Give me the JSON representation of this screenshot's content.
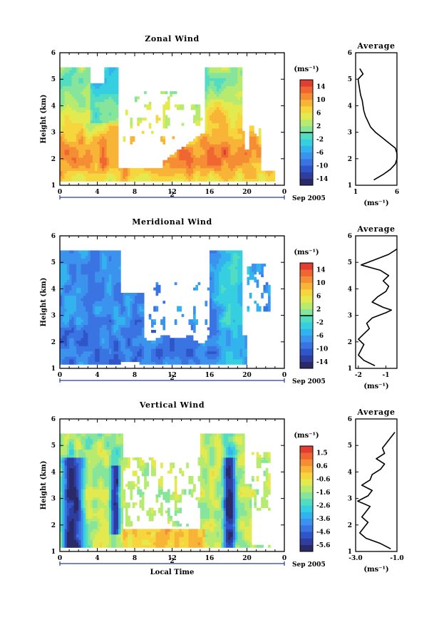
{
  "palette": [
    "#2b2a68",
    "#2f3d9e",
    "#2f56c9",
    "#3a74e2",
    "#3c93ee",
    "#33b3ee",
    "#35cfe0",
    "#52dcc2",
    "#86e59a",
    "#b7eb70",
    "#e3ea4f",
    "#f6d63c",
    "#f7b437",
    "#f58d34",
    "#ef6632",
    "#e03e30"
  ],
  "chart_data": [
    {
      "type": "heatmap",
      "title": "Zonal Wind",
      "ylabel": "Height (km)",
      "xlabel": "",
      "x_ticks": [
        "0",
        "4",
        "8",
        "12",
        "16",
        "20",
        "0"
      ],
      "y_ticks": [
        "1",
        "2",
        "3",
        "4",
        "5",
        "6"
      ],
      "ylim": [
        1,
        6
      ],
      "date_bar_label": "2",
      "date_label": "Sep 2005",
      "colorbar": {
        "unit": "(ms⁻¹)",
        "ticks": [
          "14",
          "10",
          "6",
          "2",
          "-2",
          "-6",
          "-10",
          "-14"
        ],
        "range": [
          -16,
          16
        ],
        "zero_line": true
      },
      "average": {
        "title": "Average",
        "xlabel": "(ms⁻¹)",
        "x_ticks": [
          "1",
          "6"
        ],
        "xlim": [
          1,
          6
        ],
        "heights": [
          1.2,
          1.4,
          1.6,
          1.8,
          2.0,
          2.2,
          2.4,
          2.6,
          2.8,
          3.0,
          3.2,
          3.4,
          3.6,
          3.8,
          4.0,
          4.2,
          4.4,
          4.6,
          4.8,
          5.0,
          5.2,
          5.4
        ],
        "values": [
          3.2,
          4.3,
          5.2,
          5.8,
          6.0,
          6.0,
          5.8,
          5.0,
          4.2,
          3.4,
          2.8,
          2.5,
          2.2,
          2.0,
          1.9,
          1.8,
          1.6,
          1.5,
          1.4,
          1.3,
          1.9,
          1.5
        ]
      }
    },
    {
      "type": "heatmap",
      "title": "Meridional Wind",
      "ylabel": "Height (km)",
      "xlabel": "",
      "x_ticks": [
        "0",
        "4",
        "8",
        "12",
        "16",
        "20",
        "0"
      ],
      "y_ticks": [
        "1",
        "2",
        "3",
        "4",
        "5",
        "6"
      ],
      "ylim": [
        1,
        6
      ],
      "date_bar_label": "2",
      "date_label": "Sep 2005",
      "colorbar": {
        "unit": "(ms⁻¹)",
        "ticks": [
          "14",
          "10",
          "6",
          "2",
          "-2",
          "-6",
          "-10",
          "-14"
        ],
        "range": [
          -16,
          16
        ],
        "zero_line": true
      },
      "average": {
        "title": "Average",
        "xlabel": "(ms⁻¹)",
        "x_ticks": [
          "-2",
          "-1"
        ],
        "xlim": [
          -2.1,
          -0.6
        ],
        "heights": [
          1.1,
          1.3,
          1.5,
          1.7,
          1.9,
          2.1,
          2.3,
          2.5,
          2.7,
          2.9,
          3.1,
          3.2,
          3.3,
          3.5,
          3.7,
          3.9,
          4.1,
          4.3,
          4.5,
          4.7,
          4.9,
          5.1,
          5.3,
          5.5
        ],
        "values": [
          -1.4,
          -1.8,
          -2.0,
          -1.9,
          -1.8,
          -2.0,
          -1.8,
          -1.6,
          -1.7,
          -1.5,
          -1.0,
          -0.8,
          -1.1,
          -1.5,
          -1.3,
          -1.0,
          -0.9,
          -1.1,
          -0.9,
          -1.2,
          -1.9,
          -1.4,
          -0.9,
          -0.6
        ]
      }
    },
    {
      "type": "heatmap",
      "title": "Vertical Wind",
      "ylabel": "Height (km)",
      "xlabel": "Local Time",
      "x_ticks": [
        "0",
        "4",
        "8",
        "12",
        "16",
        "20",
        "0"
      ],
      "y_ticks": [
        "1",
        "2",
        "3",
        "4",
        "5",
        "6"
      ],
      "ylim": [
        1,
        6
      ],
      "date_bar_label": "2",
      "date_label": "Sep 2005",
      "colorbar": {
        "unit": "(ms⁻¹)",
        "ticks": [
          "1.5",
          "0.6",
          "-0.6",
          "-1.6",
          "-2.6",
          "-3.6",
          "-4.6",
          "-5.6"
        ],
        "range": [
          -6.0,
          2.0
        ],
        "zero_line": false
      },
      "average": {
        "title": "Average",
        "xlabel": "(ms⁻¹)",
        "x_ticks": [
          "-3.0",
          "-1.0"
        ],
        "xlim": [
          -3.0,
          -1.0
        ],
        "heights": [
          1.1,
          1.3,
          1.5,
          1.7,
          1.9,
          2.1,
          2.3,
          2.5,
          2.7,
          2.9,
          3.1,
          3.3,
          3.5,
          3.7,
          3.9,
          4.1,
          4.3,
          4.5,
          4.7,
          4.9,
          5.1,
          5.3,
          5.5
        ],
        "values": [
          -1.3,
          -1.8,
          -2.5,
          -2.8,
          -2.6,
          -2.4,
          -2.7,
          -2.5,
          -2.3,
          -2.9,
          -2.4,
          -2.2,
          -2.7,
          -2.3,
          -2.2,
          -1.8,
          -1.6,
          -2.0,
          -1.6,
          -1.7,
          -1.5,
          -1.3,
          -1.1
        ]
      }
    }
  ]
}
